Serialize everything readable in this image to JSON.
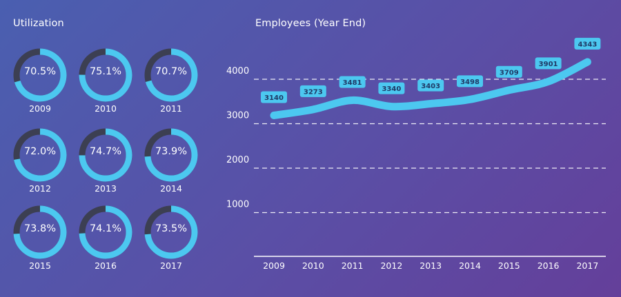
{
  "utilization": {
    "title": "Utilization",
    "colors": {
      "ring": "#4cc8f0",
      "track": "#3c3f52"
    },
    "items": [
      {
        "year": "2009",
        "value": 70.5,
        "label": "70.5%"
      },
      {
        "year": "2010",
        "value": 75.1,
        "label": "75.1%"
      },
      {
        "year": "2011",
        "value": 70.7,
        "label": "70.7%"
      },
      {
        "year": "2012",
        "value": 72.0,
        "label": "72.0%"
      },
      {
        "year": "2013",
        "value": 74.7,
        "label": "74.7%"
      },
      {
        "year": "2014",
        "value": 73.9,
        "label": "73.9%"
      },
      {
        "year": "2015",
        "value": 73.8,
        "label": "73.8%"
      },
      {
        "year": "2016",
        "value": 74.1,
        "label": "74.1%"
      },
      {
        "year": "2017",
        "value": 73.5,
        "label": "73.5%"
      }
    ]
  },
  "employees": {
    "title": "Employees (Year End)"
  },
  "chart_data": [
    {
      "type": "pie",
      "title": "Utilization",
      "categories": [
        "2009",
        "2010",
        "2011",
        "2012",
        "2013",
        "2014",
        "2015",
        "2016",
        "2017"
      ],
      "values": [
        70.5,
        75.1,
        70.7,
        72.0,
        74.7,
        73.9,
        73.8,
        74.1,
        73.5
      ],
      "unit": "%"
    },
    {
      "type": "line",
      "title": "Employees (Year End)",
      "x": [
        "2009",
        "2010",
        "2011",
        "2012",
        "2013",
        "2014",
        "2015",
        "2016",
        "2017"
      ],
      "series": [
        {
          "values": [
            3140,
            3273,
            3481,
            3340,
            3403,
            3498,
            3709,
            3901,
            4343
          ]
        }
      ],
      "yticks": [
        1000,
        2000,
        3000,
        4000
      ],
      "ylim": [
        0,
        4500
      ],
      "grid": true,
      "colors": {
        "line": "#4cc8f0",
        "label_bg": "#4cc8f0",
        "label_text": "#1f3a66",
        "grid": "#ffffff"
      }
    }
  ]
}
